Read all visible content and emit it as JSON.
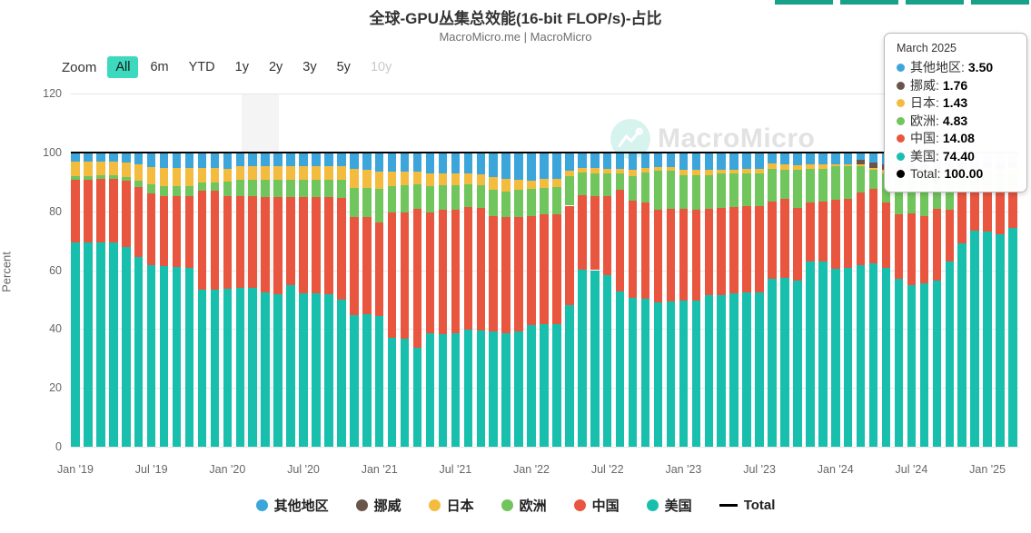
{
  "header": {
    "title": "全球-GPU丛集总效能(16-bit FLOP/s)-占比",
    "subtitle": "MacroMicro.me | MacroMicro"
  },
  "toolbar": {
    "zoom_label": "Zoom",
    "ranges": [
      "All",
      "6m",
      "YTD",
      "1y",
      "2y",
      "3y",
      "5y",
      "10y"
    ],
    "active": "All",
    "disabled": "10y"
  },
  "watermark": {
    "text": "MacroMicro"
  },
  "y_axis": {
    "title": "Percent",
    "ticks": [
      0,
      20,
      40,
      60,
      80,
      100,
      120
    ],
    "max": 120
  },
  "x_axis": {
    "labels": [
      "Jan '19",
      "Jul '19",
      "Jan '20",
      "Jul '20",
      "Jan '21",
      "Jul '21",
      "Jan '22",
      "Jul '22",
      "Jan '23",
      "Jul '23",
      "Jan '24",
      "Jul '24",
      "Jan '25"
    ]
  },
  "tooltip": {
    "title": "March 2025",
    "rows": [
      {
        "label": "其他地区",
        "value": "3.50",
        "color": "#3ca6db"
      },
      {
        "label": "挪威",
        "value": "1.76",
        "color": "#6a554b"
      },
      {
        "label": "日本",
        "value": "1.43",
        "color": "#f4bc3e"
      },
      {
        "label": "欧洲",
        "value": "4.83",
        "color": "#70c55c"
      },
      {
        "label": "中国",
        "value": "14.08",
        "color": "#e8563f"
      },
      {
        "label": "美国",
        "value": "74.40",
        "color": "#19bfad"
      },
      {
        "label": "Total",
        "value": "100.00",
        "color": "#000000"
      }
    ]
  },
  "legend": [
    {
      "label": "其他地区",
      "color": "#3ca6db",
      "marker": "circle"
    },
    {
      "label": "挪威",
      "color": "#6a554b",
      "marker": "circle"
    },
    {
      "label": "日本",
      "color": "#f4bc3e",
      "marker": "circle"
    },
    {
      "label": "欧洲",
      "color": "#70c55c",
      "marker": "circle"
    },
    {
      "label": "中国",
      "color": "#e8563f",
      "marker": "circle"
    },
    {
      "label": "美国",
      "color": "#19bfad",
      "marker": "circle"
    },
    {
      "label": "Total",
      "color": "#000000",
      "marker": "line"
    }
  ],
  "chart_data": {
    "type": "bar",
    "stacked": true,
    "unit": "percent",
    "title": "全球-GPU丛集总效能(16-bit FLOP/s)-占比",
    "ylabel": "Percent",
    "ylim": [
      0,
      120
    ],
    "grid": true,
    "legend_position": "bottom",
    "plot_band": {
      "from": "2020-02",
      "to": "2020-04"
    },
    "total_line": {
      "name": "Total",
      "value": 100,
      "color": "#000000"
    },
    "x": [
      "2019-01",
      "2019-02",
      "2019-03",
      "2019-04",
      "2019-05",
      "2019-06",
      "2019-07",
      "2019-08",
      "2019-09",
      "2019-10",
      "2019-11",
      "2019-12",
      "2020-01",
      "2020-02",
      "2020-03",
      "2020-04",
      "2020-05",
      "2020-06",
      "2020-07",
      "2020-08",
      "2020-09",
      "2020-10",
      "2020-11",
      "2020-12",
      "2021-01",
      "2021-02",
      "2021-03",
      "2021-04",
      "2021-05",
      "2021-06",
      "2021-07",
      "2021-08",
      "2021-09",
      "2021-10",
      "2021-11",
      "2021-12",
      "2022-01",
      "2022-02",
      "2022-03",
      "2022-04",
      "2022-05",
      "2022-06",
      "2022-07",
      "2022-08",
      "2022-09",
      "2022-10",
      "2022-11",
      "2022-12",
      "2023-01",
      "2023-02",
      "2023-03",
      "2023-04",
      "2023-05",
      "2023-06",
      "2023-07",
      "2023-08",
      "2023-09",
      "2023-10",
      "2023-11",
      "2023-12",
      "2024-01",
      "2024-02",
      "2024-03",
      "2024-04",
      "2024-05",
      "2024-06",
      "2024-07",
      "2024-08",
      "2024-09",
      "2024-10",
      "2024-11",
      "2024-12",
      "2025-01",
      "2025-02",
      "2025-03"
    ],
    "stack_order_note": "series listed bottom-to-top of each stacked column; values are percent shares summing to 100",
    "series": [
      {
        "name": "美国",
        "key": "us",
        "color": "#19bfad",
        "values": [
          69.4,
          69.5,
          69.3,
          69.4,
          68.0,
          64.6,
          61.8,
          61.4,
          61.2,
          60.8,
          53.3,
          53.5,
          53.6,
          54.1,
          54.0,
          52.5,
          51.8,
          55.0,
          52.2,
          52.0,
          51.8,
          50.0,
          44.8,
          44.9,
          44.3,
          37.1,
          36.6,
          33.5,
          38.7,
          38.3,
          38.7,
          39.7,
          39.4,
          39.1,
          38.7,
          39.2,
          41.3,
          41.5,
          41.5,
          48.1,
          60.3,
          60.0,
          58.2,
          52.6,
          50.5,
          50.3,
          49.0,
          49.4,
          49.6,
          49.8,
          51.5,
          51.4,
          52.1,
          52.3,
          52.5,
          57.2,
          57.4,
          56.4,
          62.9,
          63.0,
          60.5,
          60.7,
          61.8,
          62.3,
          60.8,
          57.2,
          54.9,
          55.6,
          56.6,
          62.8,
          69.0,
          73.3,
          73.1,
          72.1,
          74.4
        ]
      },
      {
        "name": "中国",
        "key": "cn",
        "color": "#e8563f",
        "values": [
          21.4,
          21.3,
          21.6,
          21.5,
          22.3,
          23.5,
          24.3,
          23.6,
          23.8,
          24.2,
          33.7,
          33.5,
          31.4,
          30.9,
          31.0,
          32.4,
          33.1,
          29.8,
          32.6,
          32.8,
          33.0,
          34.6,
          33.2,
          33.1,
          31.9,
          42.5,
          42.9,
          47.4,
          40.9,
          42.1,
          41.7,
          41.7,
          41.6,
          39.2,
          39.3,
          38.9,
          37.1,
          37.4,
          37.4,
          33.8,
          25.2,
          25.0,
          27.0,
          34.7,
          33.1,
          32.6,
          31.6,
          31.3,
          31.2,
          30.8,
          29.4,
          29.8,
          29.4,
          29.4,
          29.2,
          26.2,
          26.8,
          24.8,
          20.0,
          20.3,
          23.5,
          23.4,
          24.7,
          25.3,
          22.1,
          21.7,
          24.4,
          22.7,
          24.3,
          17.6,
          17.5,
          13.7,
          14.8,
          14.4,
          14.08
        ]
      },
      {
        "name": "欧洲",
        "key": "eu",
        "color": "#70c55c",
        "values": [
          1.2,
          1.2,
          1.2,
          1.2,
          1.4,
          2.2,
          2.9,
          3.4,
          3.5,
          3.6,
          2.7,
          2.8,
          5.0,
          5.6,
          5.6,
          5.8,
          5.8,
          6.0,
          6.0,
          6.0,
          6.0,
          6.2,
          10.0,
          10.0,
          11.5,
          9.0,
          9.2,
          8.3,
          8.9,
          8.3,
          8.4,
          7.6,
          7.8,
          8.9,
          8.8,
          9.2,
          9.1,
          9.1,
          9.2,
          10.0,
          7.7,
          8.0,
          7.5,
          5.5,
          8.4,
          10.3,
          13.3,
          13.2,
          11.4,
          11.6,
          11.3,
          11.5,
          11.2,
          11.2,
          11.2,
          11.0,
          10.0,
          13.0,
          11.6,
          11.2,
          11.3,
          11.2,
          8.9,
          6.4,
          10.1,
          13.0,
          13.2,
          14.0,
          11.5,
          12.0,
          7.0,
          6.5,
          5.6,
          6.6,
          4.83
        ]
      },
      {
        "name": "日本",
        "key": "jp",
        "color": "#f4bc3e",
        "values": [
          4.8,
          4.8,
          4.7,
          4.7,
          4.9,
          5.5,
          6.0,
          6.3,
          6.2,
          6.1,
          5.0,
          4.9,
          4.5,
          4.7,
          4.6,
          4.6,
          4.6,
          4.5,
          4.5,
          4.5,
          4.5,
          4.5,
          6.3,
          6.2,
          5.8,
          4.9,
          4.8,
          4.3,
          4.5,
          4.3,
          4.2,
          3.8,
          3.7,
          4.3,
          4.2,
          3.3,
          2.9,
          2.9,
          2.9,
          1.8,
          1.6,
          1.8,
          1.7,
          1.5,
          2.0,
          1.5,
          1.0,
          1.0,
          1.8,
          1.8,
          1.8,
          1.5,
          1.5,
          1.4,
          1.4,
          1.7,
          1.6,
          1.5,
          1.5,
          1.5,
          0.7,
          0.7,
          0.6,
          0.6,
          1.0,
          1.2,
          1.0,
          1.0,
          1.0,
          1.0,
          1.0,
          1.0,
          1.2,
          1.4,
          1.43
        ]
      },
      {
        "name": "挪威",
        "key": "no",
        "color": "#6a554b",
        "values": [
          0,
          0,
          0,
          0,
          0,
          0,
          0,
          0,
          0,
          0,
          0,
          0,
          0,
          0,
          0,
          0,
          0,
          0,
          0,
          0,
          0,
          0,
          0,
          0,
          0,
          0,
          0,
          0,
          0,
          0,
          0,
          0,
          0,
          0,
          0,
          0,
          0,
          0,
          0,
          0,
          0,
          0,
          0,
          0,
          0,
          0,
          0,
          0,
          0,
          0,
          0,
          0,
          0,
          0,
          0,
          0,
          0,
          0,
          0,
          0,
          0,
          0,
          1.5,
          2.0,
          2.0,
          2.0,
          2.0,
          2.2,
          2.1,
          2.1,
          2.0,
          2.0,
          1.9,
          1.9,
          1.76
        ]
      },
      {
        "name": "其他地区",
        "key": "other",
        "color": "#3ca6db",
        "values": [
          3.2,
          3.2,
          3.2,
          3.2,
          3.4,
          4.2,
          5.0,
          5.3,
          5.3,
          5.3,
          5.3,
          5.3,
          5.5,
          4.7,
          4.8,
          4.7,
          4.7,
          4.7,
          4.7,
          4.7,
          4.7,
          4.7,
          5.7,
          5.8,
          6.5,
          6.5,
          6.5,
          6.5,
          7.0,
          7.0,
          7.0,
          7.2,
          7.5,
          8.5,
          9.0,
          9.4,
          9.6,
          9.1,
          9.0,
          6.3,
          5.2,
          5.2,
          5.6,
          5.7,
          6.0,
          5.3,
          5.1,
          5.1,
          6.0,
          6.0,
          6.0,
          5.8,
          5.8,
          5.7,
          5.7,
          3.9,
          4.2,
          4.3,
          4.0,
          4.0,
          4.0,
          4.0,
          2.5,
          3.4,
          4.0,
          4.9,
          4.5,
          4.5,
          4.5,
          4.5,
          3.5,
          3.5,
          3.4,
          3.6,
          3.5
        ]
      }
    ]
  }
}
